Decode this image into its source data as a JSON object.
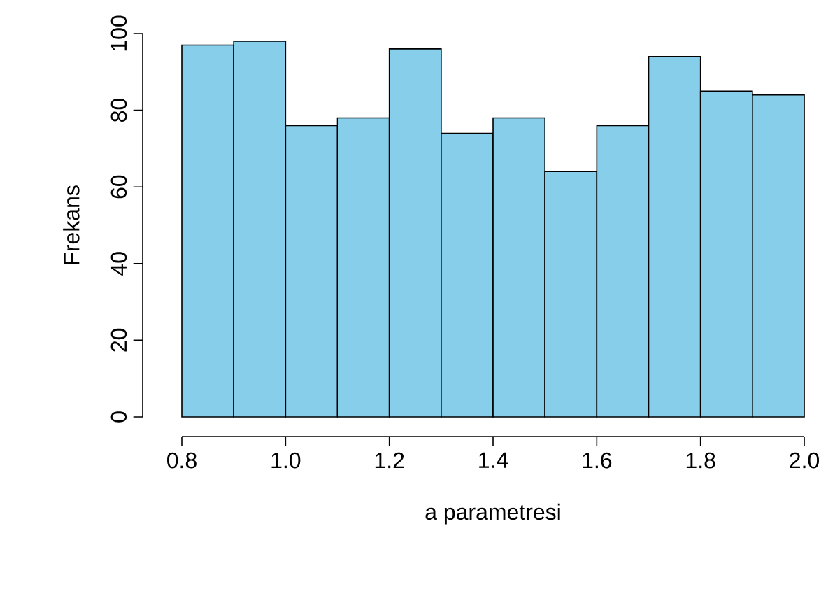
{
  "chart_data": {
    "type": "histogram",
    "xlabel": "a parametresi",
    "ylabel": "Frekans",
    "bins": [
      0.8,
      0.9,
      1.0,
      1.1,
      1.2,
      1.3,
      1.4,
      1.5,
      1.6,
      1.7,
      1.8,
      1.9,
      2.0
    ],
    "values": [
      97,
      98,
      76,
      78,
      96,
      74,
      78,
      64,
      76,
      94,
      85,
      84
    ],
    "color": "#87ceeb",
    "xlim": [
      0.8,
      2.0
    ],
    "ylim": [
      0,
      100
    ],
    "xticks": [
      {
        "value": 0.8,
        "label": "0.8"
      },
      {
        "value": 1.0,
        "label": "1.0"
      },
      {
        "value": 1.2,
        "label": "1.2"
      },
      {
        "value": 1.4,
        "label": "1.4"
      },
      {
        "value": 1.6,
        "label": "1.6"
      },
      {
        "value": 1.8,
        "label": "1.8"
      },
      {
        "value": 2.0,
        "label": "2.0"
      }
    ],
    "yticks": [
      0,
      20,
      40,
      60,
      80,
      100
    ]
  }
}
